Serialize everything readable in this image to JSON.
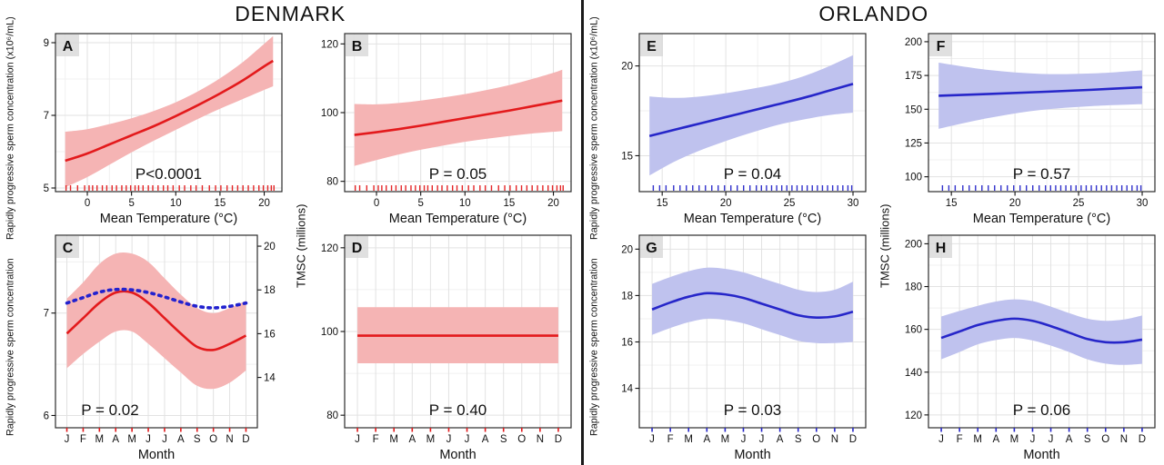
{
  "titles": {
    "left": "DENMARK",
    "right": "ORLANDO"
  },
  "ylabels": {
    "denmark_top": "Rapidly progressive sperm concentration (x10⁶/mL)",
    "denmark_bottom": "Rapidly progressive sperm concentration",
    "denmark_tmsc": "TMSC (millions)",
    "orlando_top": "Rapidly progressive sperm concentration (x10⁶/mL)",
    "orlando_bottom": "Rapidly progressive sperm concentration",
    "orlando_tmsc": "TMSC (millions)"
  },
  "months": [
    "J",
    "F",
    "M",
    "A",
    "M",
    "J",
    "J",
    "A",
    "S",
    "O",
    "N",
    "D"
  ],
  "rugs": {
    "denmark": [
      -2.4,
      -1.9,
      -1.1,
      -0.3,
      0.2,
      0.6,
      1.1,
      1.7,
      2.2,
      2.8,
      3.3,
      3.9,
      4.4,
      4.9,
      5.4,
      5.8,
      6.3,
      6.9,
      7.4,
      8.0,
      8.6,
      9.1,
      9.7,
      10.4,
      11.0,
      11.7,
      12.3,
      13.0,
      13.8,
      14.5,
      15.1,
      15.8,
      16.4,
      17.0,
      17.6,
      18.2,
      18.8,
      19.4,
      19.9,
      20.4,
      20.8,
      21.1
    ],
    "orlando": [
      14.3,
      14.8,
      15.3,
      15.9,
      16.4,
      16.9,
      17.4,
      17.9,
      18.4,
      18.9,
      19.4,
      19.9,
      20.4,
      20.9,
      21.4,
      21.9,
      22.4,
      22.8,
      23.2,
      23.6,
      24.0,
      24.4,
      24.8,
      25.2,
      25.6,
      26.0,
      26.4,
      26.8,
      27.2,
      27.6,
      28.0,
      28.4,
      28.8,
      29.2,
      29.6,
      29.9
    ]
  },
  "chart_data": [
    {
      "panel": "A",
      "type": "line",
      "x_type": "temp",
      "xlabel": "Mean Temperature (°C)",
      "xlim": [
        -3.6,
        22
      ],
      "xticks": [
        0,
        5,
        10,
        15,
        20
      ],
      "ylim": [
        4.9,
        9.25
      ],
      "yticks": [
        5,
        7,
        9
      ],
      "p_label": "P<0.0001",
      "line_color": "#e31a1c",
      "band_color": "#f5b4b4",
      "x": [
        -2.5,
        0,
        2.5,
        5,
        7.5,
        10,
        12.5,
        15,
        17.5,
        20,
        21
      ],
      "y": [
        5.75,
        5.95,
        6.2,
        6.45,
        6.7,
        6.98,
        7.28,
        7.6,
        7.95,
        8.35,
        8.5
      ],
      "hi": [
        6.55,
        6.62,
        6.76,
        6.92,
        7.12,
        7.36,
        7.66,
        8.02,
        8.45,
        8.97,
        9.18
      ],
      "lo": [
        5.02,
        5.3,
        5.64,
        5.98,
        6.3,
        6.6,
        6.9,
        7.18,
        7.44,
        7.7,
        7.8
      ],
      "rug": "denmark"
    },
    {
      "panel": "B",
      "type": "line",
      "x_type": "temp",
      "xlabel": "Mean Temperature (°C)",
      "xlim": [
        -3.6,
        22
      ],
      "xticks": [
        0,
        5,
        10,
        15,
        20
      ],
      "ylim": [
        77,
        123
      ],
      "yticks": [
        80,
        100,
        120
      ],
      "p_label": "P = 0.05",
      "line_color": "#e31a1c",
      "band_color": "#f5b4b4",
      "x": [
        -2.5,
        0,
        2.5,
        5,
        7.5,
        10,
        12.5,
        15,
        17.5,
        20,
        21
      ],
      "y": [
        93.5,
        94.3,
        95.2,
        96.2,
        97.3,
        98.4,
        99.5,
        100.6,
        101.8,
        103,
        103.5
      ],
      "hi": [
        102.5,
        102.4,
        102.8,
        103.5,
        104.4,
        105.4,
        106.6,
        108,
        109.7,
        111.6,
        112.5
      ],
      "lo": [
        84.5,
        86.2,
        87.8,
        89.2,
        90.4,
        91.5,
        92.4,
        93.2,
        93.9,
        94.4,
        94.6
      ],
      "rug": "denmark"
    },
    {
      "panel": "C",
      "type": "line",
      "x_type": "month",
      "xlabel": "Month",
      "ylim": [
        5.88,
        7.76
      ],
      "yticks": [
        6,
        7
      ],
      "y2lim": [
        11.7,
        20.5
      ],
      "y2ticks": [
        14,
        16,
        18,
        20
      ],
      "p_label": "P = 0.02",
      "p_x": 0.27,
      "line_color": "#e31a1c",
      "band_color": "#f5b4b4",
      "y2_color": "#2222cf",
      "y": [
        6.8,
        6.95,
        7.1,
        7.2,
        7.2,
        7.1,
        6.95,
        6.8,
        6.67,
        6.64,
        6.7,
        6.78
      ],
      "hi": [
        7.14,
        7.3,
        7.48,
        7.58,
        7.58,
        7.5,
        7.34,
        7.18,
        7.05,
        7.0,
        7.05,
        7.12
      ],
      "lo": [
        6.46,
        6.6,
        6.72,
        6.82,
        6.82,
        6.7,
        6.56,
        6.42,
        6.29,
        6.26,
        6.32,
        6.44
      ],
      "y2": [
        17.4,
        17.65,
        17.9,
        18.02,
        18.0,
        17.88,
        17.68,
        17.45,
        17.25,
        17.18,
        17.25,
        17.4
      ]
    },
    {
      "panel": "D",
      "type": "line",
      "x_type": "month",
      "xlabel": "Month",
      "ylim": [
        77,
        123
      ],
      "yticks": [
        80,
        100,
        120
      ],
      "p_label": "P = 0.40",
      "line_color": "#e31a1c",
      "band_color": "#f5b4b4",
      "y": [
        99,
        99,
        99,
        99,
        99,
        99,
        99,
        99,
        99,
        99,
        99,
        99
      ],
      "hi": [
        105.8,
        105.8,
        105.8,
        105.8,
        105.8,
        105.8,
        105.8,
        105.8,
        105.8,
        105.8,
        105.8,
        105.8
      ],
      "lo": [
        92.4,
        92.4,
        92.4,
        92.4,
        92.4,
        92.4,
        92.4,
        92.4,
        92.4,
        92.4,
        92.4,
        92.4
      ]
    },
    {
      "panel": "E",
      "type": "line",
      "x_type": "temp",
      "xlabel": "Mean Temperature (°C)",
      "xlim": [
        13.2,
        31
      ],
      "xticks": [
        15,
        20,
        25,
        30
      ],
      "ylim": [
        13.0,
        21.8
      ],
      "yticks": [
        15,
        20
      ],
      "p_label": "P = 0.04",
      "line_color": "#2626c9",
      "band_color": "#bfc2ee",
      "x": [
        14,
        16,
        18,
        20,
        22,
        24,
        26,
        28,
        30
      ],
      "y": [
        16.1,
        16.45,
        16.8,
        17.15,
        17.5,
        17.85,
        18.2,
        18.6,
        19.0
      ],
      "hi": [
        18.3,
        18.22,
        18.3,
        18.48,
        18.72,
        19.0,
        19.4,
        19.95,
        20.6
      ],
      "lo": [
        13.9,
        14.68,
        15.3,
        15.82,
        16.28,
        16.7,
        17.0,
        17.25,
        17.4
      ],
      "rug": "orlando"
    },
    {
      "panel": "F",
      "type": "line",
      "x_type": "temp",
      "xlabel": "Mean Temperature (°C)",
      "xlim": [
        13.2,
        31
      ],
      "xticks": [
        15,
        20,
        25,
        30
      ],
      "ylim": [
        89,
        206
      ],
      "yticks": [
        100,
        125,
        150,
        175,
        200
      ],
      "p_label": "P = 0.57",
      "line_color": "#2626c9",
      "band_color": "#bfc2ee",
      "x": [
        14,
        18,
        22,
        26,
        30
      ],
      "y": [
        160,
        161.3,
        162.8,
        164.4,
        166.3
      ],
      "hi": [
        184.5,
        179,
        176.2,
        176.5,
        178.8
      ],
      "lo": [
        135.5,
        143.6,
        149.4,
        152.3,
        153.8
      ],
      "rug": "orlando"
    },
    {
      "panel": "G",
      "type": "line",
      "x_type": "month",
      "xlabel": "Month",
      "ylim": [
        12.3,
        20.6
      ],
      "yticks": [
        14,
        16,
        18,
        20
      ],
      "p_label": "P = 0.03",
      "line_color": "#2626c9",
      "band_color": "#bfc2ee",
      "y": [
        17.4,
        17.7,
        17.95,
        18.1,
        18.05,
        17.9,
        17.65,
        17.4,
        17.15,
        17.05,
        17.1,
        17.3
      ],
      "hi": [
        18.5,
        18.8,
        19.05,
        19.2,
        19.15,
        19.0,
        18.75,
        18.5,
        18.25,
        18.15,
        18.25,
        18.6
      ],
      "lo": [
        16.3,
        16.6,
        16.85,
        17.0,
        16.95,
        16.8,
        16.55,
        16.3,
        16.05,
        15.95,
        15.95,
        16.0
      ]
    },
    {
      "panel": "H",
      "type": "line",
      "x_type": "month",
      "xlabel": "Month",
      "ylim": [
        114,
        204
      ],
      "yticks": [
        120,
        140,
        160,
        180,
        200
      ],
      "p_label": "P = 0.06",
      "line_color": "#2626c9",
      "band_color": "#bfc2ee",
      "y": [
        156,
        159,
        162,
        164,
        165,
        164,
        161.5,
        158.5,
        155.5,
        154,
        154,
        155.2
      ],
      "hi": [
        166,
        168.6,
        171,
        173,
        174,
        173.2,
        170.6,
        167.6,
        165,
        164,
        164.6,
        166.5
      ],
      "lo": [
        146,
        149.4,
        153,
        155,
        156,
        154.8,
        152.4,
        149.4,
        146,
        144,
        143.4,
        143.9
      ]
    }
  ]
}
